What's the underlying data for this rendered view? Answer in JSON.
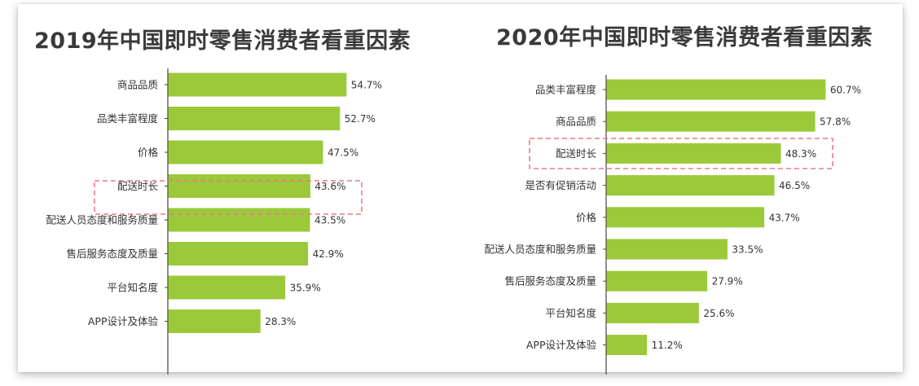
{
  "colors": {
    "bar": "#9bc93a",
    "axis": "#444444",
    "highlight": "#e57c8a",
    "title": "#3a3a3a"
  },
  "chart_data": [
    {
      "type": "bar",
      "orientation": "horizontal",
      "title": "2019年中国即时零售消费者看重因素",
      "categories": [
        "商品品质",
        "品类丰富程度",
        "价格",
        "配送时长",
        "配送人员态度和服务质量",
        "售后服务态度及质量",
        "平台知名度",
        "APP设计及体验"
      ],
      "values": [
        54.7,
        52.7,
        47.5,
        43.6,
        43.5,
        42.9,
        35.9,
        28.3
      ],
      "value_labels": [
        "54.7%",
        "52.7%",
        "47.5%",
        "43.6%",
        "43.5%",
        "42.9%",
        "35.9%",
        "28.3%"
      ],
      "unit": "%",
      "highlighted_category": "配送时长",
      "xlim": [
        0,
        60
      ],
      "grid": false,
      "legend": "none"
    },
    {
      "type": "bar",
      "orientation": "horizontal",
      "title": "2020年中国即时零售消费者看重因素",
      "categories": [
        "品类丰富程度",
        "商品品质",
        "配送时长",
        "是否有促销活动",
        "价格",
        "配送人员态度和服务质量",
        "售后服务态度及质量",
        "平台知名度",
        "APP设计及体验"
      ],
      "values": [
        60.7,
        57.8,
        48.3,
        46.5,
        43.7,
        33.5,
        27.9,
        25.6,
        11.2
      ],
      "value_labels": [
        "60.7%",
        "57.8%",
        "48.3%",
        "46.5%",
        "43.7%",
        "33.5%",
        "27.9%",
        "25.6%",
        "11.2%"
      ],
      "unit": "%",
      "highlighted_category": "配送时长",
      "xlim": [
        0,
        65
      ],
      "grid": false,
      "legend": "none"
    }
  ]
}
